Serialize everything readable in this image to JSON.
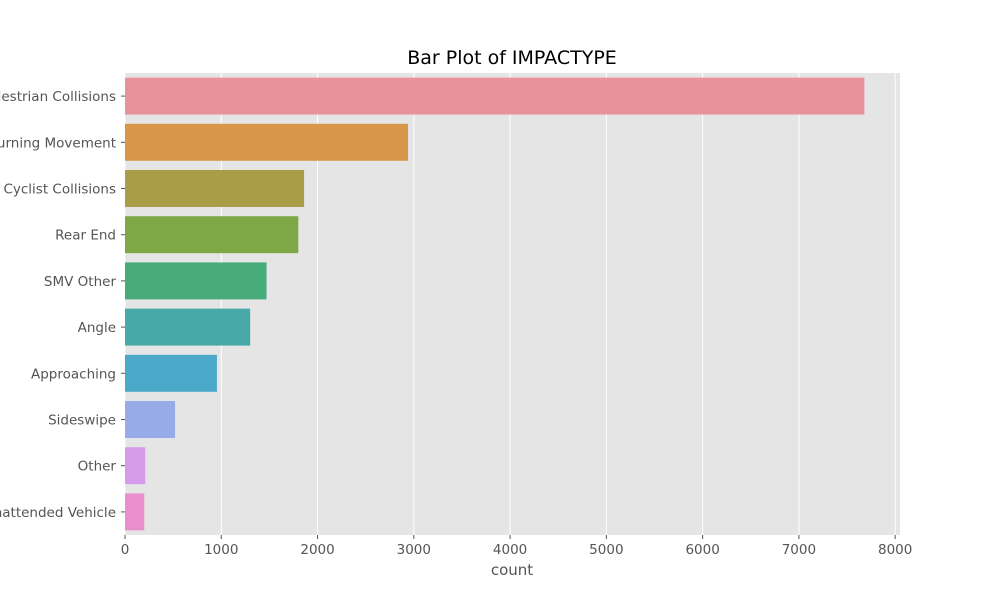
{
  "chart_data": {
    "type": "bar",
    "orientation": "horizontal",
    "title": "Bar Plot of IMPACTYPE",
    "xlabel": "count",
    "ylabel": "",
    "categories": [
      "Pedestrian Collisions",
      "Turning Movement",
      "Cyclist Collisions",
      "Rear End",
      "SMV Other",
      "Angle",
      "Approaching",
      "Sideswipe",
      "Other",
      "SMV Unattended Vehicle"
    ],
    "values": [
      7680,
      2940,
      1860,
      1800,
      1470,
      1300,
      955,
      520,
      210,
      200
    ],
    "colors": [
      "#e8939c",
      "#d8964a",
      "#a99d48",
      "#7da845",
      "#47ab79",
      "#47aaa8",
      "#4aa9c9",
      "#97abe9",
      "#d69bea",
      "#e98fcf"
    ],
    "xlim": [
      0,
      8050
    ],
    "xticks": [
      0,
      1000,
      2000,
      3000,
      4000,
      5000,
      6000,
      7000,
      8000
    ],
    "grid": true,
    "background": "#e5e5e5",
    "legend": "none"
  }
}
